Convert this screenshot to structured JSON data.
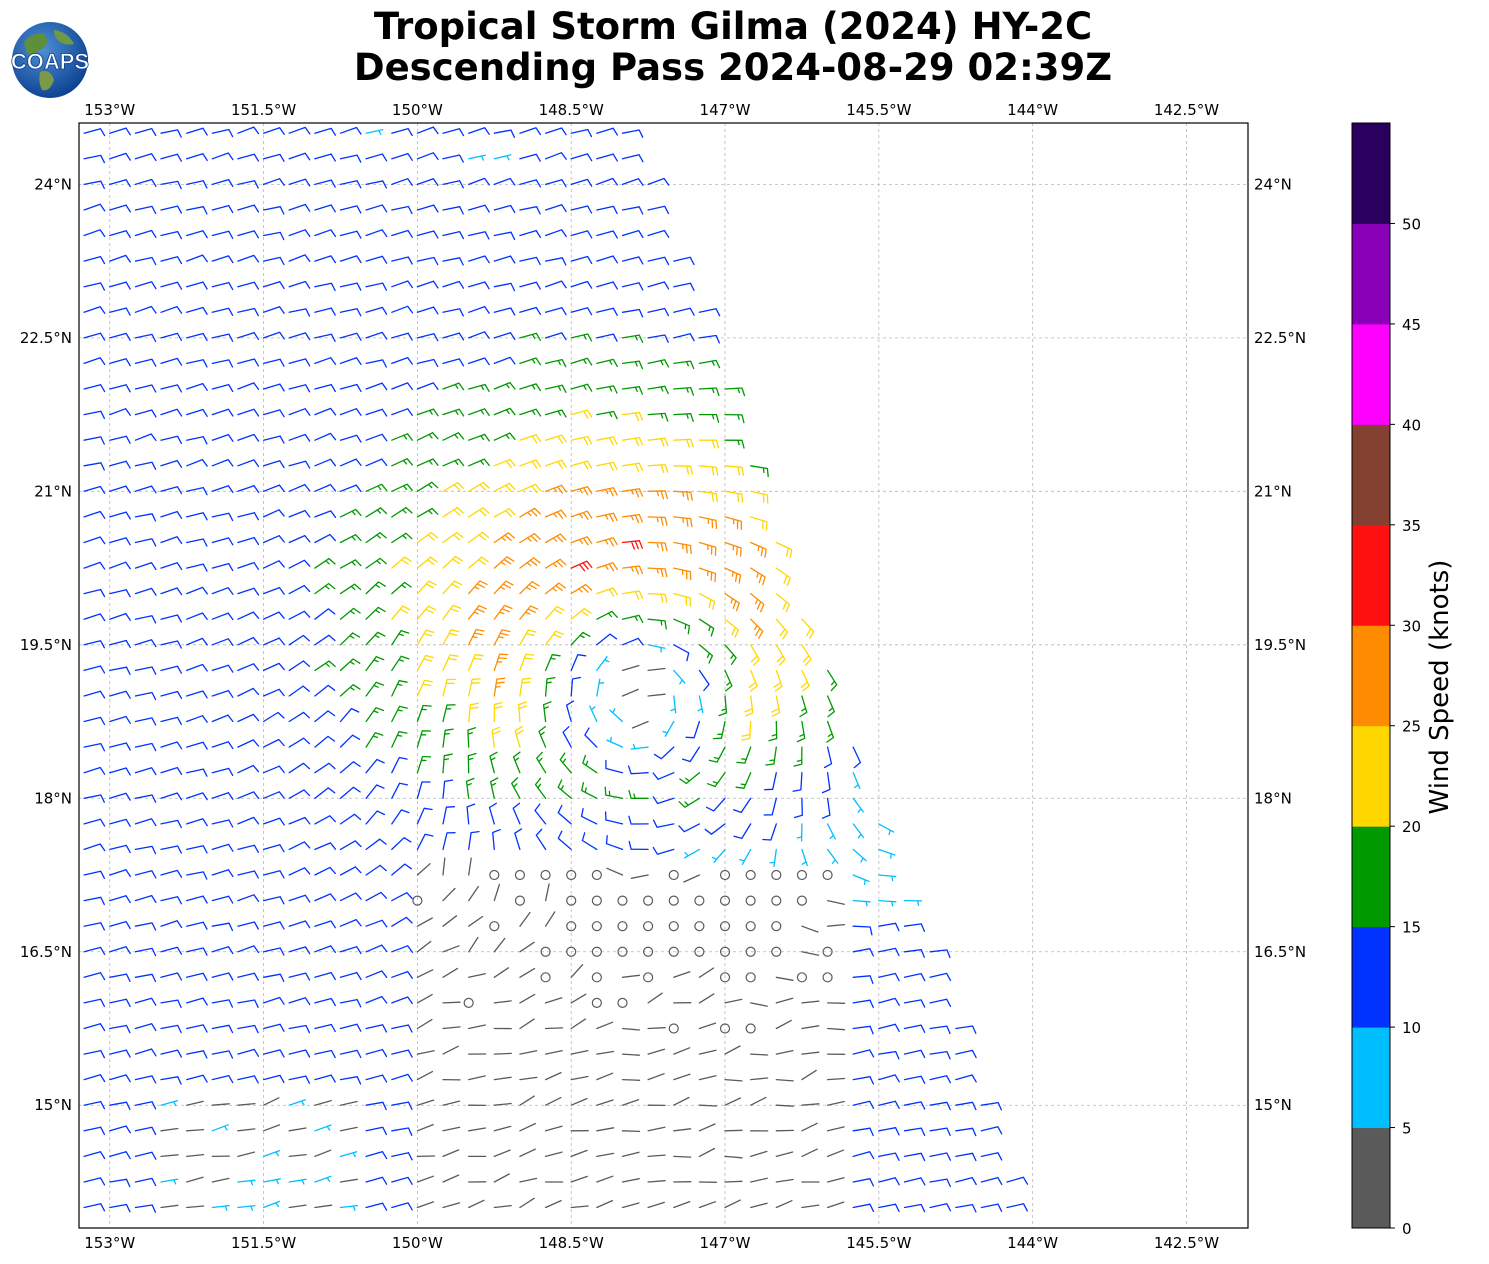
{
  "title": {
    "line1": "Tropical Storm Gilma (2024) HY-2C",
    "line2": "Descending Pass 2024-08-29 02:39Z"
  },
  "logo": {
    "text": "COAPS",
    "icon": "globe-logo-icon"
  },
  "map": {
    "lon_ticks": [
      "153°W",
      "151.5°W",
      "150°W",
      "148.5°W",
      "147°W",
      "145.5°W",
      "144°W",
      "142.5°W"
    ],
    "lat_ticks": [
      "24°N",
      "22.5°N",
      "21°N",
      "19.5°N",
      "18°N",
      "16.5°N",
      "15°N"
    ],
    "lon_range": [
      -153.3,
      -141.9
    ],
    "lat_range": [
      13.8,
      24.6
    ],
    "gridlines": true,
    "storm_center": {
      "lon": -147.9,
      "lat": 19.2
    },
    "swath": "descending pass, eastern edge from about 147.9°W at 24.6°N to 144.1°W at 14.0°N"
  },
  "colorbar": {
    "label": "Wind Speed (knots)",
    "tick_labels": [
      "0",
      "5",
      "10",
      "15",
      "20",
      "25",
      "30",
      "35",
      "40",
      "45",
      "50"
    ],
    "bins": [
      {
        "min": 0,
        "max": 5,
        "color": "#5a5a5a"
      },
      {
        "min": 5,
        "max": 10,
        "color": "#00bfff"
      },
      {
        "min": 10,
        "max": 15,
        "color": "#0033ff"
      },
      {
        "min": 15,
        "max": 20,
        "color": "#009900"
      },
      {
        "min": 20,
        "max": 25,
        "color": "#ffd700"
      },
      {
        "min": 25,
        "max": 30,
        "color": "#ff8c00"
      },
      {
        "min": 30,
        "max": 35,
        "color": "#ff1010"
      },
      {
        "min": 35,
        "max": 40,
        "color": "#844030"
      },
      {
        "min": 40,
        "max": 45,
        "color": "#ff00ff"
      },
      {
        "min": 45,
        "max": 50,
        "color": "#8a00b8"
      },
      {
        "min": 50,
        "max": 55,
        "color": "#2a005e"
      }
    ]
  }
}
